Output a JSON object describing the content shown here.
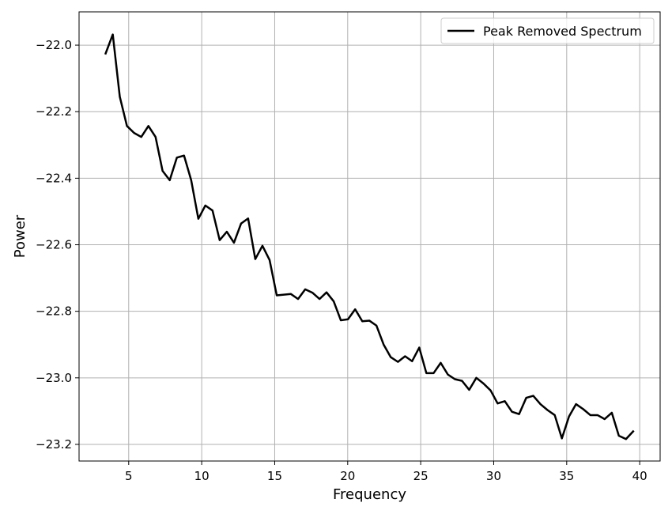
{
  "chart_data": {
    "type": "line",
    "title": "",
    "xlabel": "Frequency",
    "ylabel": "Power",
    "xlim": [
      1.6,
      41.4
    ],
    "ylim": [
      -23.25,
      -21.9
    ],
    "xticks": [
      5,
      10,
      15,
      20,
      25,
      30,
      35,
      40
    ],
    "yticks": [
      -22.0,
      -22.2,
      -22.4,
      -22.6,
      -22.8,
      -23.0,
      -23.2
    ],
    "xtick_labels": [
      "5",
      "10",
      "15",
      "20",
      "25",
      "30",
      "35",
      "40"
    ],
    "ytick_labels": [
      "−22.0",
      "−22.2",
      "−22.4",
      "−22.6",
      "−22.8",
      "−23.0",
      "−23.2"
    ],
    "grid": true,
    "legend": "top-right",
    "series": [
      {
        "name": "Peak Removed Spectrum",
        "color": "#000000",
        "x": [
          3.42,
          3.91,
          4.39,
          4.88,
          5.37,
          5.86,
          6.35,
          6.84,
          7.32,
          7.81,
          8.3,
          8.79,
          9.28,
          9.77,
          10.25,
          10.74,
          11.23,
          11.72,
          12.21,
          12.7,
          13.18,
          13.67,
          14.16,
          14.65,
          15.14,
          15.63,
          16.11,
          16.6,
          17.09,
          17.58,
          18.07,
          18.55,
          19.04,
          19.53,
          20.02,
          20.51,
          21.0,
          21.48,
          21.97,
          22.46,
          22.95,
          23.44,
          23.93,
          24.41,
          24.9,
          25.39,
          25.88,
          26.37,
          26.86,
          27.34,
          27.83,
          28.32,
          28.81,
          29.3,
          29.79,
          30.27,
          30.76,
          31.25,
          31.74,
          32.23,
          32.71,
          33.2,
          33.69,
          34.18,
          34.67,
          35.16,
          35.64,
          36.13,
          36.62,
          37.11,
          37.6,
          38.09,
          38.57,
          39.06,
          39.55
        ],
        "values": [
          -22.025,
          -21.968,
          -22.155,
          -22.243,
          -22.264,
          -22.276,
          -22.243,
          -22.276,
          -22.378,
          -22.406,
          -22.338,
          -22.332,
          -22.406,
          -22.522,
          -22.482,
          -22.497,
          -22.586,
          -22.561,
          -22.594,
          -22.536,
          -22.521,
          -22.643,
          -22.603,
          -22.646,
          -22.752,
          -22.75,
          -22.748,
          -22.763,
          -22.734,
          -22.744,
          -22.763,
          -22.743,
          -22.77,
          -22.827,
          -22.824,
          -22.794,
          -22.83,
          -22.828,
          -22.843,
          -22.9,
          -22.938,
          -22.952,
          -22.935,
          -22.95,
          -22.909,
          -22.986,
          -22.986,
          -22.955,
          -22.99,
          -23.004,
          -23.009,
          -23.036,
          -23.0,
          -23.017,
          -23.038,
          -23.077,
          -23.07,
          -23.102,
          -23.109,
          -23.06,
          -23.054,
          -23.079,
          -23.097,
          -23.112,
          -23.182,
          -23.116,
          -23.079,
          -23.094,
          -23.112,
          -23.112,
          -23.124,
          -23.105,
          -23.174,
          -23.184,
          -23.161
        ]
      }
    ]
  }
}
